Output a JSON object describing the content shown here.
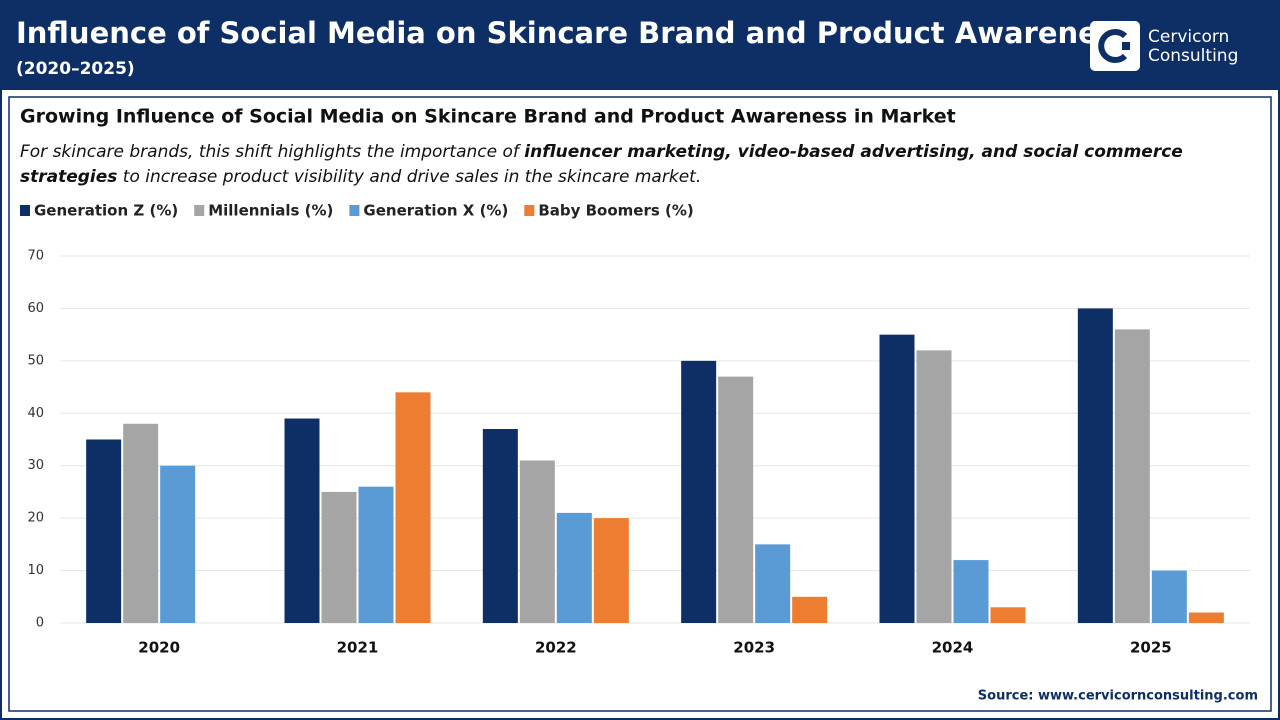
{
  "header": {
    "title": "Influence of Social Media on Skincare Brand and Product Awareness",
    "subtitle": "(2020–2025)"
  },
  "logo": {
    "line1": "Cervicorn",
    "line2": "Consulting"
  },
  "description": {
    "before": "For skincare brands, this shift highlights the importance of ",
    "bold": "influencer marketing, video-based advertising, and social commerce strategies",
    "after": " to increase product visibility and drive sales in the skincare market."
  },
  "chart_data": {
    "type": "bar",
    "title": "Growing Influence of Social Media on Skincare Brand and Product Awareness in Market",
    "categories": [
      "2020",
      "2021",
      "2022",
      "2023",
      "2024",
      "2025"
    ],
    "series": [
      {
        "name": "Generation Z (%)",
        "color": "#0d2f66",
        "values": [
          35,
          39,
          37,
          50,
          55,
          60
        ]
      },
      {
        "name": "Millennials (%)",
        "color": "#a5a5a5",
        "values": [
          38,
          25,
          31,
          47,
          52,
          56
        ]
      },
      {
        "name": "Generation X (%)",
        "color": "#5b9bd5",
        "values": [
          30,
          26,
          21,
          15,
          12,
          10
        ]
      },
      {
        "name": "Baby Boomers (%)",
        "color": "#ed7d31",
        "values": [
          0,
          44,
          20,
          5,
          3,
          2
        ]
      }
    ],
    "ylim": [
      0,
      70
    ],
    "yticks": [
      0,
      10,
      20,
      30,
      40,
      50,
      60,
      70
    ],
    "grid": true,
    "legend": "top-left"
  },
  "source": "Source: www.cervicornconsulting.com"
}
